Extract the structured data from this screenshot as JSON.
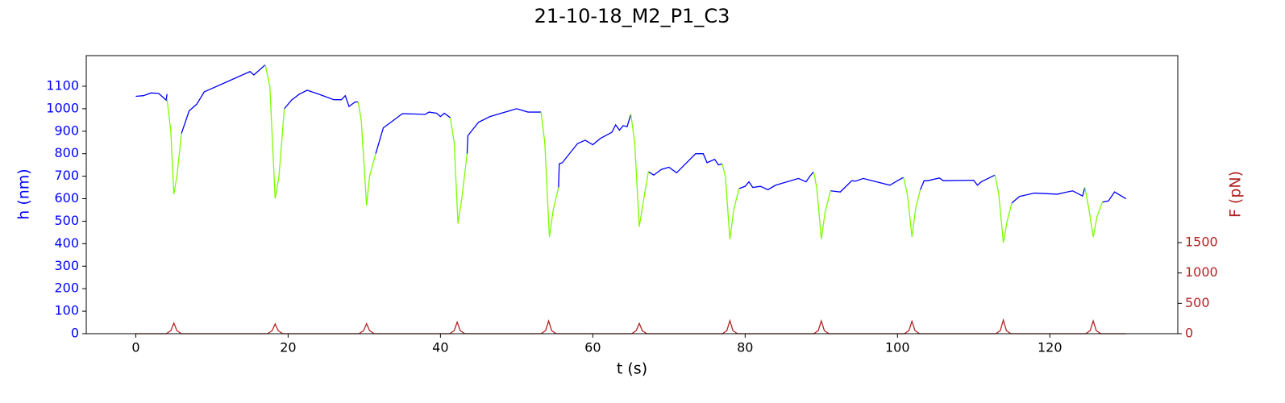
{
  "chart_data": {
    "type": "line",
    "title": "21-10-18_M2_P1_C3",
    "xlabel": "t (s)",
    "ylabel": "h (nm)",
    "y2label": "F (pN)",
    "xlim": [
      -6.5,
      136.8
    ],
    "ylim": [
      0,
      1236
    ],
    "y2lim": [
      0,
      4580
    ],
    "xticks": [
      0,
      20,
      40,
      60,
      80,
      100,
      120
    ],
    "yticks": [
      0,
      100,
      200,
      300,
      400,
      500,
      600,
      700,
      800,
      900,
      1000,
      1100
    ],
    "y2ticks": [
      0,
      500,
      1000,
      1500
    ],
    "ycolor": "#0000ff",
    "y2color": "#b22222",
    "series": [
      {
        "color": "#0000ff",
        "x": [
          0,
          1,
          2,
          3,
          4,
          4.1,
          4.5,
          6,
          7,
          8,
          9,
          12,
          15,
          15.5,
          16.5,
          17,
          17.5,
          19.5,
          20.5,
          21.5,
          22.5,
          24,
          26,
          27,
          27.5,
          28,
          28.8,
          29.2,
          29.5,
          31.5,
          32.5,
          33.5,
          35,
          38,
          38.5,
          39.5,
          40,
          40.5,
          41.3,
          42,
          43.5,
          43.6,
          45,
          46.5,
          50,
          51.5,
          53.2,
          54,
          55.5,
          55.6,
          56,
          58,
          59,
          60,
          61,
          62.5,
          63,
          63.5,
          64,
          64.5,
          65,
          65.5,
          67.3,
          68,
          69,
          70,
          71,
          73.5,
          74.5,
          75,
          76,
          76.5,
          77,
          77.5,
          79.2,
          80,
          80.5,
          81,
          82,
          83,
          84,
          87,
          88,
          88.5,
          89,
          89.5,
          91.2,
          92.5,
          94,
          94.5,
          95.5,
          99,
          100,
          100.8,
          101.3,
          103,
          103.5,
          104,
          105.5,
          106,
          110,
          110.5,
          111,
          112.8,
          113.3,
          115,
          116,
          118,
          121,
          122,
          123,
          124.3,
          124.6,
          125,
          126.9,
          127.7,
          128.5,
          130
        ],
        "values": [
          1055,
          1058,
          1070,
          1068,
          1038,
          1065,
          null,
          890,
          990,
          1020,
          1075,
          1120,
          1165,
          1150,
          1180,
          1195,
          null,
          1000,
          1040,
          1065,
          1082,
          1065,
          1040,
          1040,
          1058,
          1010,
          1030,
          1030,
          null,
          800,
          915,
          940,
          978,
          975,
          985,
          980,
          965,
          980,
          960,
          null,
          800,
          880,
          940,
          965,
          1000,
          985,
          985,
          null,
          650,
          755,
          760,
          845,
          860,
          840,
          868,
          895,
          928,
          905,
          925,
          920,
          975,
          null,
          720,
          705,
          730,
          740,
          715,
          800,
          800,
          760,
          775,
          750,
          755,
          null,
          645,
          655,
          675,
          650,
          655,
          640,
          660,
          690,
          675,
          700,
          720,
          null,
          635,
          630,
          680,
          678,
          690,
          660,
          680,
          695,
          null,
          640,
          680,
          680,
          692,
          680,
          682,
          660,
          675,
          705,
          null,
          580,
          610,
          625,
          620,
          628,
          635,
          612,
          650,
          null,
          585,
          590,
          630,
          600
        ]
      },
      {
        "color": "#7cfc00",
        "x": [
          4.1,
          4.6,
          5,
          5.4,
          6,
          6.5,
          17,
          17.6,
          18.3,
          18.8,
          19.5,
          19.8,
          29.2,
          29.6,
          30.3,
          30.7,
          31.5,
          31.8,
          41.3,
          41.8,
          42.3,
          42.8,
          43.5,
          43.8,
          53.2,
          53.7,
          54.3,
          54.8,
          55.5,
          55.8,
          65,
          65.5,
          66.1,
          66.6,
          67.3,
          67.6,
          77,
          77.4,
          78,
          78.5,
          79.2,
          79.5,
          89,
          89.4,
          90,
          90.5,
          91.2,
          91.5,
          100.8,
          101.3,
          101.9,
          102.4,
          103,
          103.3,
          112.8,
          113.3,
          113.9,
          114.4,
          115,
          115.3,
          124.6,
          125.1,
          125.7,
          126.2,
          126.9
        ],
        "values": [
          1045,
          900,
          620,
          700,
          890,
          null,
          1195,
          1100,
          600,
          700,
          1000,
          null,
          1030,
          950,
          570,
          700,
          800,
          null,
          960,
          850,
          490,
          600,
          800,
          null,
          985,
          850,
          430,
          550,
          650,
          null,
          975,
          850,
          475,
          580,
          720,
          null,
          755,
          700,
          420,
          550,
          645,
          null,
          720,
          650,
          420,
          540,
          635,
          null,
          695,
          620,
          430,
          560,
          640,
          null,
          705,
          620,
          405,
          500,
          580,
          null,
          650,
          560,
          430,
          520,
          585
        ]
      },
      {
        "color": "#b22222",
        "axis": "y2",
        "x": [
          0,
          4,
          4.6,
          5,
          5.4,
          6,
          17.3,
          17.9,
          18.3,
          18.7,
          19.3,
          29.3,
          29.9,
          30.3,
          30.7,
          31.3,
          41.2,
          41.8,
          42.2,
          42.6,
          43.2,
          53.2,
          53.8,
          54.2,
          54.6,
          55.2,
          65.1,
          65.7,
          66.1,
          66.5,
          67.1,
          77,
          77.6,
          78,
          78.4,
          79,
          89,
          89.6,
          90,
          90.4,
          91,
          100.9,
          101.5,
          101.9,
          102.3,
          102.9,
          112.9,
          113.5,
          113.9,
          114.3,
          114.9,
          124.7,
          125.3,
          125.7,
          126.1,
          126.7,
          130
        ],
        "values": [
          0,
          0,
          50,
          175,
          50,
          0,
          0,
          50,
          160,
          50,
          0,
          0,
          50,
          165,
          50,
          0,
          0,
          50,
          190,
          50,
          0,
          0,
          50,
          210,
          50,
          0,
          0,
          50,
          170,
          50,
          0,
          0,
          50,
          215,
          50,
          0,
          0,
          50,
          210,
          50,
          0,
          0,
          50,
          205,
          50,
          0,
          0,
          50,
          225,
          50,
          0,
          0,
          50,
          210,
          50,
          0,
          0
        ]
      }
    ]
  }
}
